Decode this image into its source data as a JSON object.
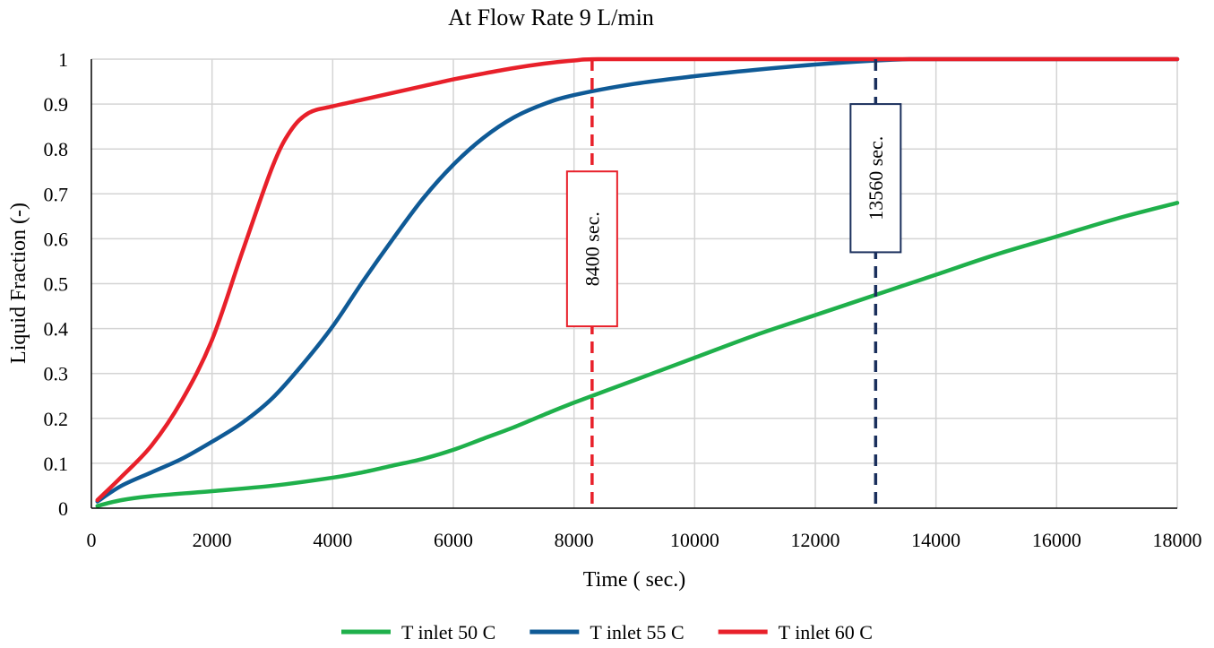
{
  "chart_data": {
    "type": "line",
    "title": "At Flow Rate 9 L/min",
    "xlabel": "Time ( sec.)",
    "ylabel": "Liquid Fraction (-)",
    "xlim": [
      0,
      18000
    ],
    "ylim": [
      0,
      1
    ],
    "xticks": [
      0,
      2000,
      4000,
      6000,
      8000,
      10000,
      12000,
      14000,
      16000,
      18000
    ],
    "yticks": [
      0,
      0.1,
      0.2,
      0.3,
      0.4,
      0.5,
      0.6,
      0.7,
      0.8,
      0.9,
      1
    ],
    "xtick_labels": [
      "0",
      "2000",
      "4000",
      "6000",
      "8000",
      "10000",
      "12000",
      "14000",
      "16000",
      "18000"
    ],
    "ytick_labels": [
      "0",
      "0.1",
      "0.2",
      "0.3",
      "0.4",
      "0.5",
      "0.6",
      "0.7",
      "0.8",
      "0.9",
      "1"
    ],
    "grid": true,
    "legend_position": "bottom",
    "series": [
      {
        "name": "T inlet 50 C",
        "color": "#1fb04b",
        "x": [
          100,
          500,
          1000,
          2000,
          3000,
          4000,
          4500,
          5000,
          5500,
          6000,
          6500,
          7000,
          7500,
          8000,
          9000,
          10000,
          11000,
          12000,
          13000,
          14000,
          15000,
          16000,
          17000,
          18000
        ],
        "y": [
          0.005,
          0.018,
          0.027,
          0.038,
          0.05,
          0.068,
          0.08,
          0.095,
          0.11,
          0.13,
          0.155,
          0.18,
          0.208,
          0.235,
          0.285,
          0.335,
          0.385,
          0.43,
          0.475,
          0.52,
          0.565,
          0.605,
          0.645,
          0.68
        ]
      },
      {
        "name": "T inlet 55 C",
        "color": "#0f5a96",
        "x": [
          100,
          500,
          1000,
          1500,
          2000,
          2500,
          3000,
          3500,
          4000,
          4500,
          5000,
          5500,
          6000,
          6500,
          7000,
          7500,
          8000,
          9000,
          10000,
          11000,
          12000,
          13000,
          13560,
          14000,
          16000,
          18000
        ],
        "y": [
          0.015,
          0.05,
          0.08,
          0.11,
          0.148,
          0.19,
          0.245,
          0.32,
          0.405,
          0.505,
          0.6,
          0.69,
          0.765,
          0.825,
          0.87,
          0.9,
          0.92,
          0.945,
          0.962,
          0.976,
          0.988,
          0.997,
          1.0,
          1.0,
          1.0,
          1.0
        ]
      },
      {
        "name": "T inlet 60 C",
        "color": "#e8202a",
        "x": [
          100,
          500,
          1000,
          1500,
          2000,
          2500,
          3000,
          3300,
          3600,
          4000,
          4500,
          5000,
          5500,
          6000,
          6500,
          7000,
          7500,
          8000,
          8400,
          10000,
          12000,
          14000,
          16000,
          18000
        ],
        "y": [
          0.018,
          0.07,
          0.14,
          0.24,
          0.375,
          0.57,
          0.76,
          0.84,
          0.88,
          0.895,
          0.91,
          0.925,
          0.94,
          0.955,
          0.968,
          0.98,
          0.99,
          0.997,
          1.0,
          1.0,
          1.0,
          1.0,
          1.0,
          1.0
        ]
      }
    ],
    "markers": [
      {
        "x": 8300,
        "label": "8400 sec.",
        "color": "#e8202a",
        "box_y_range": [
          0.405,
          0.75
        ]
      },
      {
        "x": 13000,
        "label": "13560 sec.",
        "color": "#1a2f5c",
        "box_y_range": [
          0.57,
          0.9
        ]
      }
    ]
  }
}
